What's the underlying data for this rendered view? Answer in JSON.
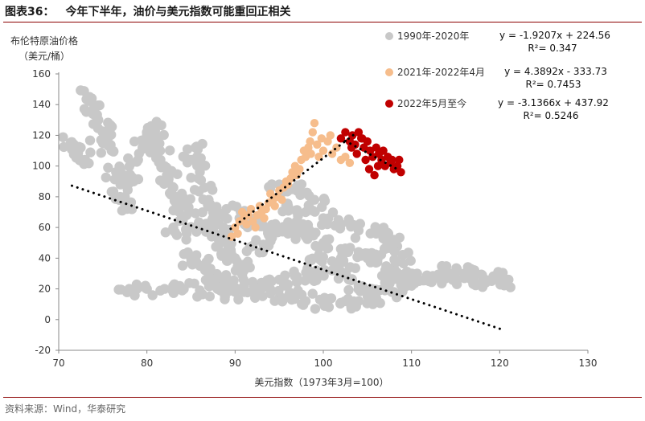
{
  "figure": {
    "label": "图表36：",
    "title": "今年下半年，油价与美元指数可能重回正相关",
    "source": "资料来源：Wind，华泰研究"
  },
  "chart_data": {
    "type": "scatter",
    "title": "今年下半年，油价与美元指数可能重回正相关",
    "ylabel": "布伦特原油价格",
    "ylabel_unit": "（美元/桶）",
    "xlabel": "美元指数（1973年3月=100）",
    "xlim": [
      70,
      130
    ],
    "ylim": [
      -20,
      160
    ],
    "xticks": [
      70,
      80,
      90,
      100,
      110,
      120,
      130
    ],
    "yticks": [
      -20,
      0,
      20,
      40,
      60,
      80,
      100,
      120,
      140,
      160
    ],
    "grid": false,
    "legend_position": "top-right",
    "series": [
      {
        "name": "1990年-2020年",
        "color": "#c8c8c8",
        "equation": "y = -1.9207x + 224.56",
        "r2": "R²= 0.347",
        "trend": {
          "x": [
            71.5,
            120.5
          ],
          "y": [
            87.2,
            -6.9
          ]
        },
        "points": [
          [
            71.5,
            115
          ],
          [
            72.0,
            108
          ],
          [
            72.5,
            112
          ],
          [
            73.0,
            104
          ],
          [
            73.5,
            145
          ],
          [
            74.0,
            138
          ],
          [
            74.5,
            130
          ],
          [
            75.0,
            122
          ],
          [
            75.5,
            118
          ],
          [
            76.0,
            110
          ],
          [
            76.5,
            96
          ],
          [
            77.0,
            88
          ],
          [
            77.5,
            80
          ],
          [
            78.0,
            76
          ],
          [
            78.5,
            90
          ],
          [
            79.0,
            104
          ],
          [
            79.5,
            112
          ],
          [
            80.0,
            120
          ],
          [
            80.5,
            126
          ],
          [
            81.0,
            118
          ],
          [
            81.5,
            110
          ],
          [
            82.0,
            100
          ],
          [
            82.5,
            94
          ],
          [
            83.0,
            86
          ],
          [
            83.5,
            80
          ],
          [
            84.0,
            74
          ],
          [
            84.5,
            68
          ],
          [
            85.0,
            104
          ],
          [
            85.5,
            112
          ],
          [
            86.0,
            96
          ],
          [
            86.5,
            86
          ],
          [
            87.0,
            78
          ],
          [
            87.5,
            70
          ],
          [
            88.0,
            62
          ],
          [
            88.5,
            56
          ],
          [
            89.0,
            50
          ],
          [
            89.5,
            45
          ],
          [
            90.0,
            40
          ],
          [
            90.5,
            36
          ],
          [
            91.0,
            32
          ],
          [
            78.0,
            20
          ],
          [
            80.0,
            20
          ],
          [
            82.0,
            20
          ],
          [
            84.0,
            19
          ],
          [
            86.0,
            19
          ],
          [
            88.0,
            20
          ],
          [
            90.0,
            18
          ],
          [
            92.0,
            18
          ],
          [
            94.0,
            17
          ],
          [
            96.0,
            15
          ],
          [
            98.0,
            12
          ],
          [
            100.0,
            11
          ],
          [
            102.0,
            11
          ],
          [
            104.0,
            12
          ],
          [
            106.0,
            14
          ],
          [
            108.0,
            18
          ],
          [
            110.0,
            22
          ],
          [
            112.0,
            25
          ],
          [
            114.0,
            28
          ],
          [
            116.0,
            30
          ],
          [
            118.0,
            29
          ],
          [
            120.0,
            27
          ],
          [
            121.0,
            26
          ],
          [
            92.0,
            48
          ],
          [
            94.0,
            52
          ],
          [
            96.0,
            56
          ],
          [
            98.0,
            54
          ],
          [
            100.0,
            50
          ],
          [
            102.0,
            46
          ],
          [
            104.0,
            44
          ],
          [
            106.0,
            38
          ],
          [
            108.0,
            34
          ],
          [
            110.0,
            30
          ],
          [
            112.0,
            28
          ],
          [
            114.0,
            30
          ],
          [
            116.0,
            27
          ],
          [
            118.0,
            24
          ],
          [
            96.0,
            74
          ],
          [
            98.0,
            70
          ],
          [
            100.0,
            66
          ],
          [
            102.0,
            62
          ],
          [
            104.0,
            58
          ],
          [
            106.0,
            56
          ],
          [
            108.0,
            52
          ],
          [
            95.0,
            88
          ],
          [
            97.0,
            84
          ],
          [
            99.0,
            78
          ],
          [
            85.0,
            40
          ],
          [
            86.0,
            35
          ],
          [
            87.0,
            30
          ],
          [
            88.0,
            26
          ],
          [
            89.0,
            24
          ],
          [
            91.0,
            22
          ],
          [
            93.0,
            24
          ],
          [
            95.0,
            26
          ],
          [
            97.0,
            28
          ],
          [
            99.0,
            30
          ],
          [
            101.0,
            32
          ],
          [
            103.0,
            34
          ],
          [
            105.0,
            40
          ],
          [
            107.0,
            46
          ],
          [
            109.0,
            42
          ],
          [
            83.0,
            60
          ],
          [
            84.5,
            56
          ],
          [
            86.0,
            62
          ],
          [
            87.5,
            58
          ],
          [
            89.0,
            72
          ],
          [
            90.5,
            66
          ],
          [
            92.0,
            64
          ],
          [
            93.5,
            60
          ],
          [
            95.0,
            58
          ],
          [
            96.5,
            62
          ],
          [
            98.0,
            60
          ],
          [
            99.5,
            42
          ],
          [
            101.0,
            38
          ],
          [
            102.5,
            30
          ],
          [
            104.0,
            22
          ],
          [
            105.5,
            20
          ],
          [
            107.0,
            24
          ],
          [
            108.5,
            28
          ]
        ]
      },
      {
        "name": "2021年-2022年4月",
        "color": "#f6bd8c",
        "equation": "y = 4.3892x - 333.73",
        "r2": "R²= 0.7453",
        "trend": {
          "x": [
            89.5,
            103.5
          ],
          "y": [
            59.1,
            120.6
          ]
        },
        "points": [
          [
            89.6,
            54
          ],
          [
            90.0,
            60
          ],
          [
            90.3,
            56
          ],
          [
            90.5,
            64
          ],
          [
            90.8,
            70
          ],
          [
            91.0,
            66
          ],
          [
            91.3,
            62
          ],
          [
            91.5,
            68
          ],
          [
            91.8,
            72
          ],
          [
            92.0,
            64
          ],
          [
            92.3,
            60
          ],
          [
            92.5,
            68
          ],
          [
            92.8,
            74
          ],
          [
            93.0,
            70
          ],
          [
            93.3,
            66
          ],
          [
            93.5,
            72
          ],
          [
            93.8,
            76
          ],
          [
            94.0,
            82
          ],
          [
            94.3,
            78
          ],
          [
            94.5,
            74
          ],
          [
            94.8,
            80
          ],
          [
            95.0,
            84
          ],
          [
            95.3,
            78
          ],
          [
            95.5,
            86
          ],
          [
            95.8,
            90
          ],
          [
            96.0,
            88
          ],
          [
            96.3,
            92
          ],
          [
            96.5,
            96
          ],
          [
            96.8,
            100
          ],
          [
            97.0,
            94
          ],
          [
            97.3,
            98
          ],
          [
            97.5,
            104
          ],
          [
            97.8,
            110
          ],
          [
            98.0,
            106
          ],
          [
            98.3,
            112
          ],
          [
            98.5,
            116
          ],
          [
            98.8,
            122
          ],
          [
            99.0,
            128
          ],
          [
            99.3,
            114
          ],
          [
            99.5,
            106
          ],
          [
            100.0,
            110
          ],
          [
            100.5,
            116
          ],
          [
            101.0,
            108
          ],
          [
            101.5,
            112
          ],
          [
            102.0,
            104
          ],
          [
            102.5,
            106
          ],
          [
            103.0,
            102
          ],
          [
            100.8,
            120
          ],
          [
            99.8,
            118
          ],
          [
            98.6,
            108
          ]
        ]
      },
      {
        "name": "2022年5月至今",
        "color": "#c00000",
        "equation": "y = -3.1366x + 437.92",
        "r2": "R²= 0.5246",
        "trend": {
          "x": [
            102.5,
            108.5
          ],
          "y": [
            116.4,
            97.6
          ]
        },
        "points": [
          [
            102.0,
            118
          ],
          [
            102.5,
            122
          ],
          [
            103.0,
            116
          ],
          [
            103.3,
            120
          ],
          [
            103.6,
            114
          ],
          [
            104.0,
            122
          ],
          [
            104.3,
            118
          ],
          [
            104.6,
            112
          ],
          [
            105.0,
            116
          ],
          [
            105.3,
            110
          ],
          [
            105.6,
            106
          ],
          [
            106.0,
            112
          ],
          [
            106.3,
            108
          ],
          [
            106.6,
            104
          ],
          [
            107.0,
            100
          ],
          [
            107.3,
            106
          ],
          [
            107.6,
            102
          ],
          [
            108.0,
            98
          ],
          [
            108.4,
            100
          ],
          [
            108.8,
            96
          ],
          [
            105.2,
            98
          ],
          [
            105.8,
            94
          ],
          [
            104.8,
            104
          ],
          [
            106.8,
            110
          ],
          [
            107.8,
            104
          ],
          [
            103.8,
            108
          ],
          [
            104.4,
            118
          ],
          [
            103.2,
            112
          ],
          [
            106.2,
            100
          ],
          [
            108.6,
            104
          ]
        ]
      }
    ]
  }
}
